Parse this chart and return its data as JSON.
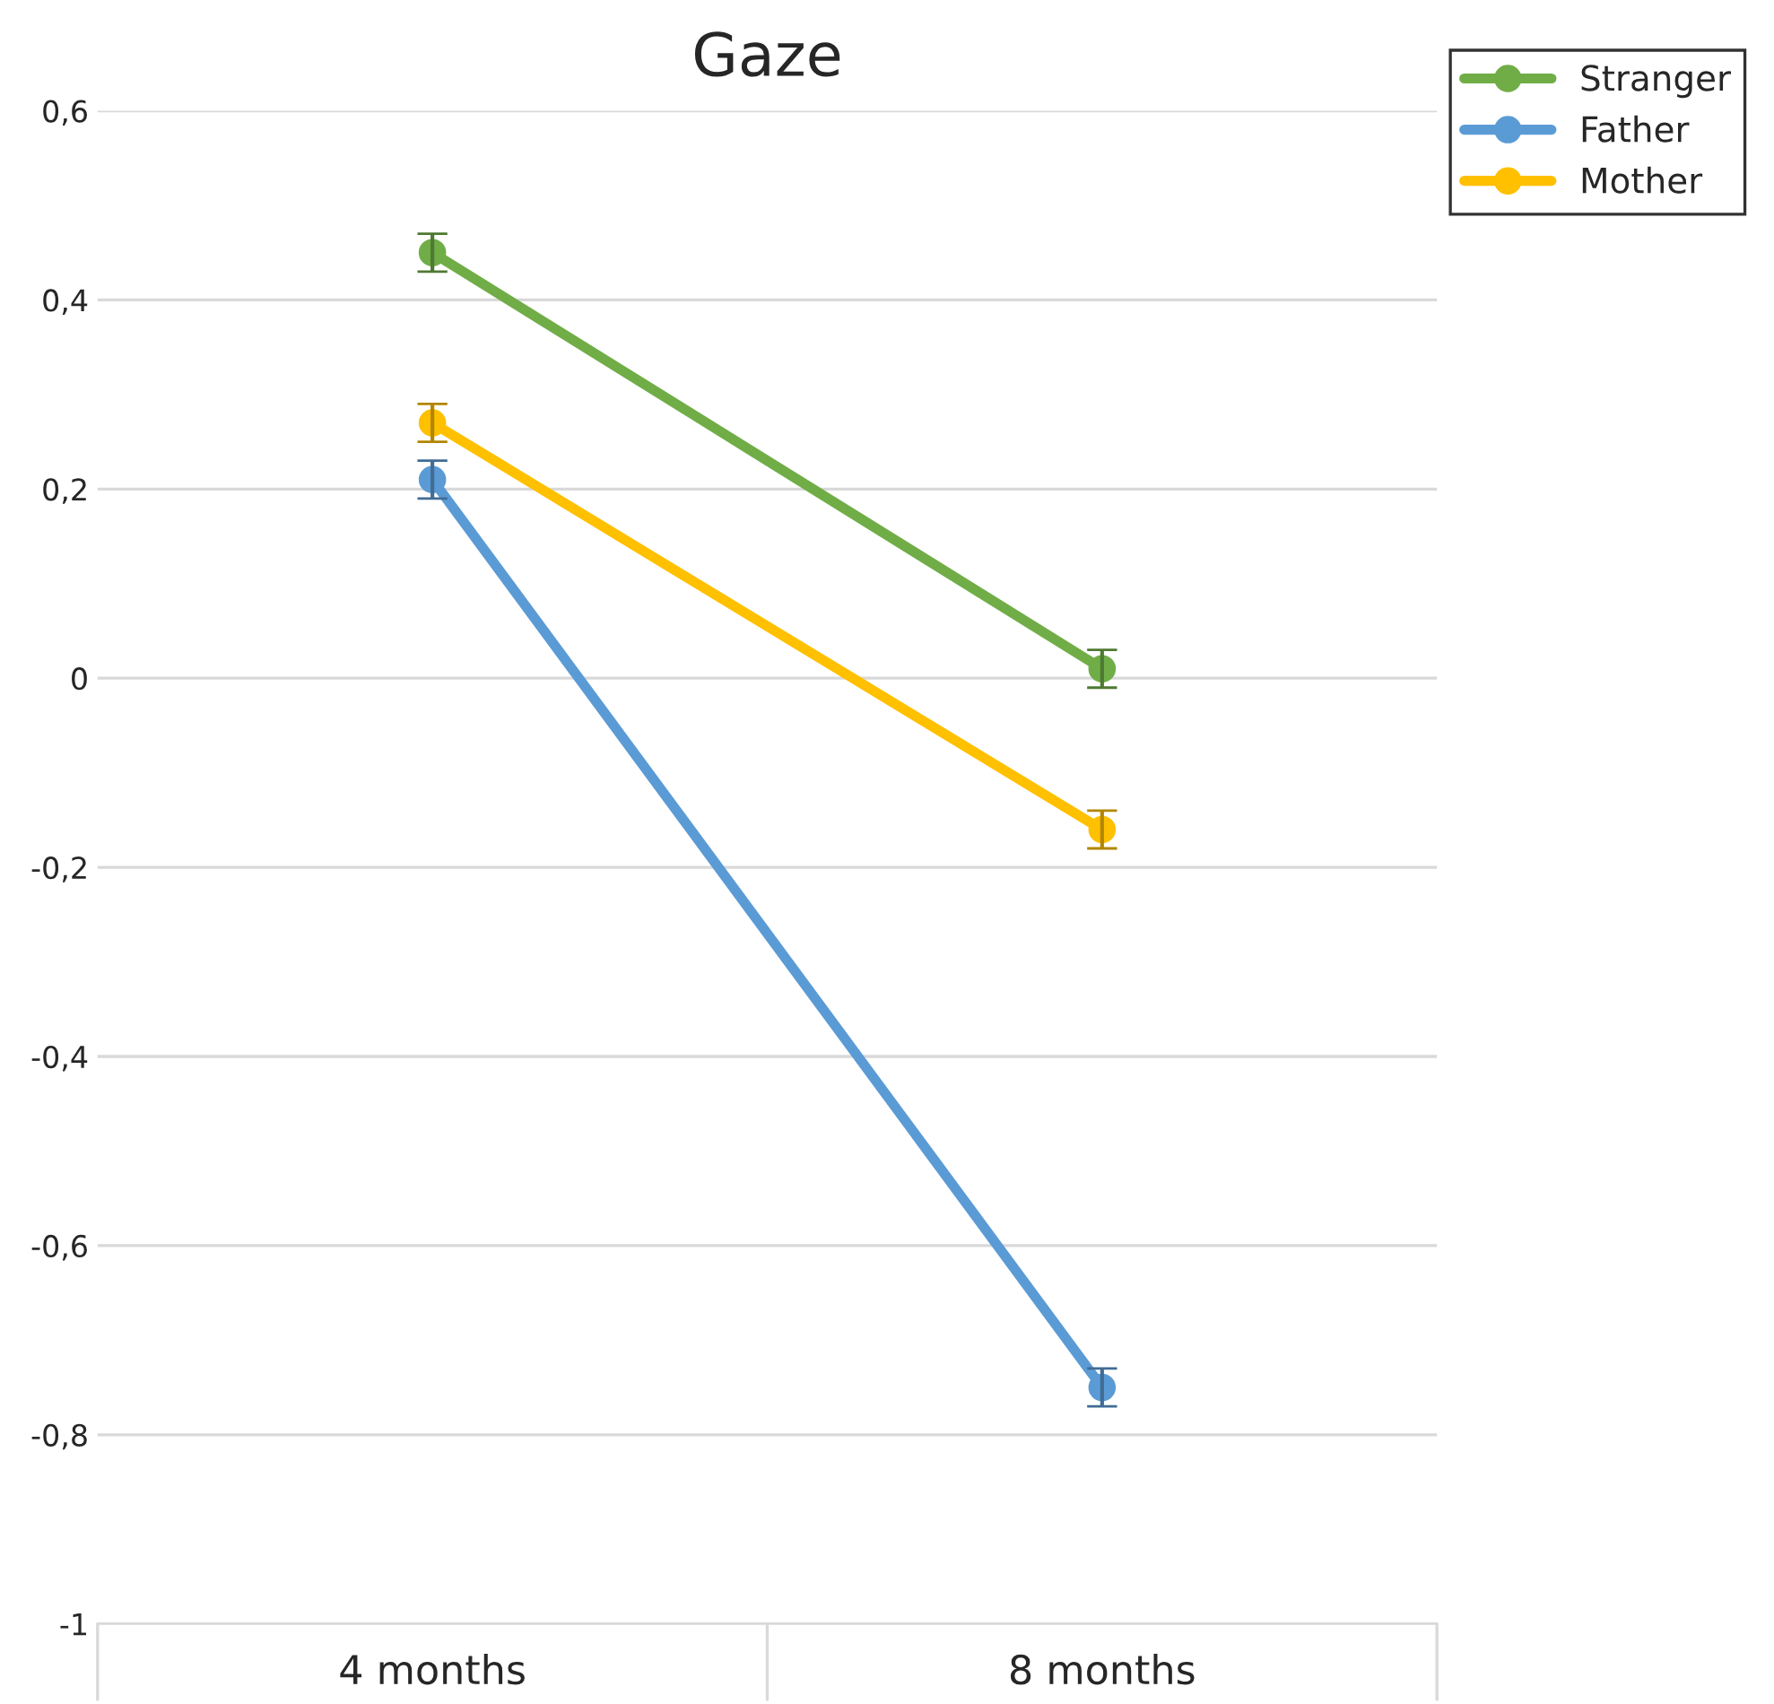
{
  "chart_data": {
    "type": "line",
    "title": "Gaze",
    "categories": [
      "4 months",
      "8 months"
    ],
    "series": [
      {
        "name": "Stranger",
        "color": "#70ad47",
        "values": [
          0.45,
          0.01
        ],
        "errors": [
          0.02,
          0.02
        ]
      },
      {
        "name": "Father",
        "color": "#5b9bd5",
        "values": [
          0.21,
          -0.75
        ],
        "errors": [
          0.02,
          0.02
        ]
      },
      {
        "name": "Mother",
        "color": "#ffc000",
        "values": [
          0.27,
          -0.16
        ],
        "errors": [
          0.02,
          0.02
        ]
      }
    ],
    "ylim": [
      -1,
      0.6
    ],
    "yticks": [
      {
        "value": -1,
        "label": "-1"
      },
      {
        "value": -0.8,
        "label": "-0,8"
      },
      {
        "value": -0.6,
        "label": "-0,6"
      },
      {
        "value": -0.4,
        "label": "-0,4"
      },
      {
        "value": -0.2,
        "label": "-0,2"
      },
      {
        "value": 0,
        "label": "0"
      },
      {
        "value": 0.2,
        "label": "0,2"
      },
      {
        "value": 0.4,
        "label": "0,4"
      },
      {
        "value": 0.6,
        "label": "0,6"
      }
    ],
    "grid": "y",
    "legend": "top right",
    "marker": "circle",
    "line_style": "solid"
  }
}
